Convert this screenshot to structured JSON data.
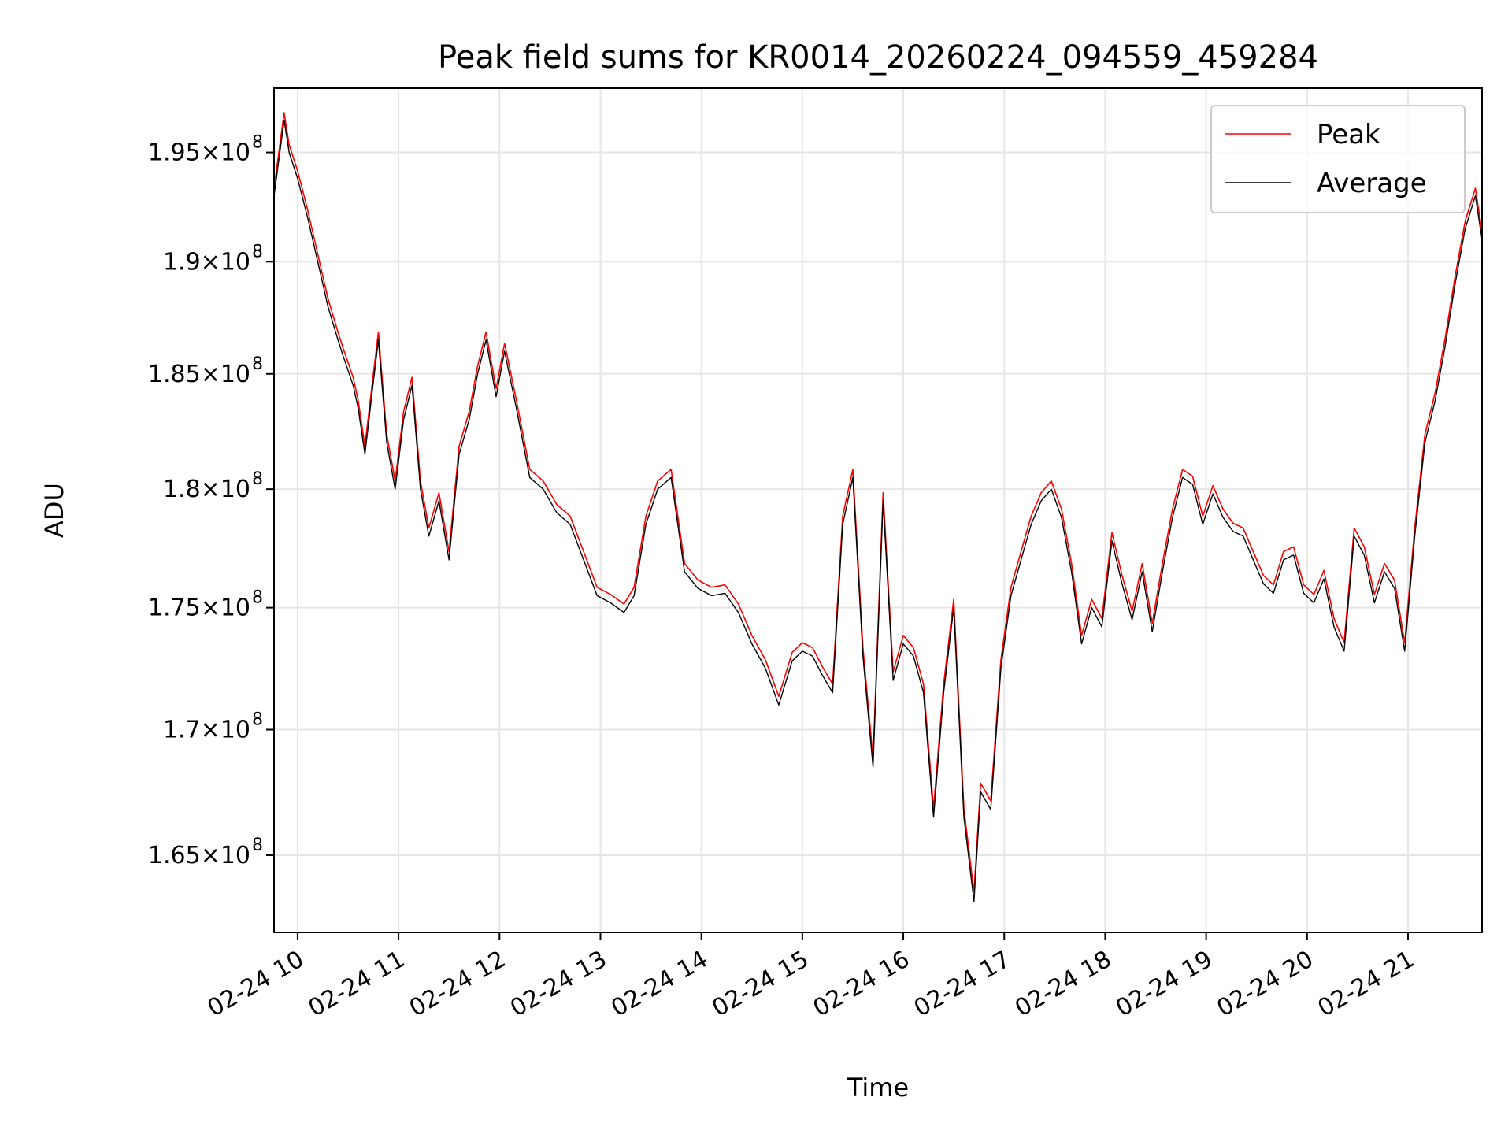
{
  "chart_data": {
    "type": "line",
    "title": "Peak field sums for KR0014_20260224_094559_459284",
    "xlabel": "Time",
    "ylabel": "ADU",
    "y_scale": "log",
    "ylim": [
      162000000,
      198000000
    ],
    "xlim": [
      "2026-02-24 09:46",
      "2026-02-24 21:44"
    ],
    "grid": true,
    "legend_position": "upper right",
    "x_ticks": [
      {
        "value": "2026-02-24 10:00",
        "label": "02-24 10"
      },
      {
        "value": "2026-02-24 11:00",
        "label": "02-24 11"
      },
      {
        "value": "2026-02-24 12:00",
        "label": "02-24 12"
      },
      {
        "value": "2026-02-24 13:00",
        "label": "02-24 13"
      },
      {
        "value": "2026-02-24 14:00",
        "label": "02-24 14"
      },
      {
        "value": "2026-02-24 15:00",
        "label": "02-24 15"
      },
      {
        "value": "2026-02-24 16:00",
        "label": "02-24 16"
      },
      {
        "value": "2026-02-24 17:00",
        "label": "02-24 17"
      },
      {
        "value": "2026-02-24 18:00",
        "label": "02-24 18"
      },
      {
        "value": "2026-02-24 19:00",
        "label": "02-24 19"
      },
      {
        "value": "2026-02-24 20:00",
        "label": "02-24 20"
      },
      {
        "value": "2026-02-24 21:00",
        "label": "02-24 21"
      }
    ],
    "y_ticks": [
      {
        "value": 165000000,
        "label": "1.65×10",
        "exp": "8"
      },
      {
        "value": 170000000,
        "label": "1.7×10",
        "exp": "8"
      },
      {
        "value": 175000000,
        "label": "1.75×10",
        "exp": "8"
      },
      {
        "value": 180000000,
        "label": "1.8×10",
        "exp": "8"
      },
      {
        "value": 185000000,
        "label": "1.85×10",
        "exp": "8"
      },
      {
        "value": 190000000,
        "label": "1.9×10",
        "exp": "8"
      },
      {
        "value": 195000000,
        "label": "1.95×10",
        "exp": "8"
      }
    ],
    "series": [
      {
        "name": "Peak",
        "color": "#ff0000",
        "line": "Peak"
      },
      {
        "name": "Average",
        "color": "#000000",
        "line": "Average"
      }
    ],
    "x": [
      "2026-02-24 09:46",
      "2026-02-24 09:52",
      "2026-02-24 09:55",
      "2026-02-24 10:00",
      "2026-02-24 10:06",
      "2026-02-24 10:12",
      "2026-02-24 10:18",
      "2026-02-24 10:24",
      "2026-02-24 10:27",
      "2026-02-24 10:33",
      "2026-02-24 10:36",
      "2026-02-24 10:40",
      "2026-02-24 10:44",
      "2026-02-24 10:48",
      "2026-02-24 10:53",
      "2026-02-24 10:58",
      "2026-02-24 11:03",
      "2026-02-24 11:08",
      "2026-02-24 11:13",
      "2026-02-24 11:18",
      "2026-02-24 11:24",
      "2026-02-24 11:30",
      "2026-02-24 11:36",
      "2026-02-24 11:42",
      "2026-02-24 11:47",
      "2026-02-24 11:52",
      "2026-02-24 11:58",
      "2026-02-24 12:03",
      "2026-02-24 12:10",
      "2026-02-24 12:18",
      "2026-02-24 12:26",
      "2026-02-24 12:34",
      "2026-02-24 12:42",
      "2026-02-24 12:50",
      "2026-02-24 12:58",
      "2026-02-24 13:06",
      "2026-02-24 13:14",
      "2026-02-24 13:20",
      "2026-02-24 13:27",
      "2026-02-24 13:34",
      "2026-02-24 13:42",
      "2026-02-24 13:50",
      "2026-02-24 13:58",
      "2026-02-24 14:06",
      "2026-02-24 14:14",
      "2026-02-24 14:22",
      "2026-02-24 14:30",
      "2026-02-24 14:38",
      "2026-02-24 14:46",
      "2026-02-24 14:54",
      "2026-02-24 15:00",
      "2026-02-24 15:06",
      "2026-02-24 15:12",
      "2026-02-24 15:18",
      "2026-02-24 15:24",
      "2026-02-24 15:30",
      "2026-02-24 15:36",
      "2026-02-24 15:42",
      "2026-02-24 15:48",
      "2026-02-24 15:54",
      "2026-02-24 16:00",
      "2026-02-24 16:06",
      "2026-02-24 16:12",
      "2026-02-24 16:18",
      "2026-02-24 16:24",
      "2026-02-24 16:30",
      "2026-02-24 16:36",
      "2026-02-24 16:42",
      "2026-02-24 16:46",
      "2026-02-24 16:52",
      "2026-02-24 16:58",
      "2026-02-24 17:04",
      "2026-02-24 17:10",
      "2026-02-24 17:16",
      "2026-02-24 17:22",
      "2026-02-24 17:28",
      "2026-02-24 17:34",
      "2026-02-24 17:40",
      "2026-02-24 17:46",
      "2026-02-24 17:52",
      "2026-02-24 17:58",
      "2026-02-24 18:04",
      "2026-02-24 18:10",
      "2026-02-24 18:16",
      "2026-02-24 18:22",
      "2026-02-24 18:28",
      "2026-02-24 18:34",
      "2026-02-24 18:40",
      "2026-02-24 18:46",
      "2026-02-24 18:52",
      "2026-02-24 18:58",
      "2026-02-24 19:04",
      "2026-02-24 19:10",
      "2026-02-24 19:16",
      "2026-02-24 19:22",
      "2026-02-24 19:28",
      "2026-02-24 19:34",
      "2026-02-24 19:40",
      "2026-02-24 19:46",
      "2026-02-24 19:52",
      "2026-02-24 19:58",
      "2026-02-24 20:04",
      "2026-02-24 20:10",
      "2026-02-24 20:16",
      "2026-02-24 20:22",
      "2026-02-24 20:28",
      "2026-02-24 20:34",
      "2026-02-24 20:40",
      "2026-02-24 20:46",
      "2026-02-24 20:52",
      "2026-02-24 20:58",
      "2026-02-24 21:04",
      "2026-02-24 21:10",
      "2026-02-24 21:16",
      "2026-02-24 21:22",
      "2026-02-24 21:28",
      "2026-02-24 21:34",
      "2026-02-24 21:40",
      "2026-02-24 21:44"
    ],
    "average": [
      193000000,
      196500000,
      195000000,
      193800000,
      192000000,
      190000000,
      188000000,
      186500000,
      185800000,
      184500000,
      183500000,
      181500000,
      184000000,
      186500000,
      182000000,
      180000000,
      183000000,
      184500000,
      180000000,
      178000000,
      179500000,
      177000000,
      181500000,
      183000000,
      185000000,
      186500000,
      184000000,
      186000000,
      183500000,
      180500000,
      180000000,
      179000000,
      178500000,
      177000000,
      175500000,
      175200000,
      174800000,
      175500000,
      178500000,
      180000000,
      180500000,
      176500000,
      175800000,
      175500000,
      175600000,
      174800000,
      173500000,
      172500000,
      171000000,
      172800000,
      173200000,
      173000000,
      172200000,
      171500000,
      178500000,
      180500000,
      173000000,
      168500000,
      179500000,
      172000000,
      173500000,
      173000000,
      171500000,
      166500000,
      171500000,
      175000000,
      166500000,
      163200000,
      167500000,
      166800000,
      172500000,
      175500000,
      177000000,
      178500000,
      179500000,
      180000000,
      178800000,
      176500000,
      173500000,
      175000000,
      174200000,
      177800000,
      176000000,
      174500000,
      176500000,
      174000000,
      176500000,
      178800000,
      180500000,
      180200000,
      178500000,
      179800000,
      178800000,
      178200000,
      178000000,
      177000000,
      176000000,
      175600000,
      177000000,
      177200000,
      175600000,
      175200000,
      176200000,
      174200000,
      173200000,
      178000000,
      177200000,
      175200000,
      176500000,
      175800000,
      173200000,
      178000000,
      182000000,
      183800000,
      186200000,
      189000000,
      191500000,
      193000000,
      191000000
    ],
    "peak_offset": 350000
  }
}
